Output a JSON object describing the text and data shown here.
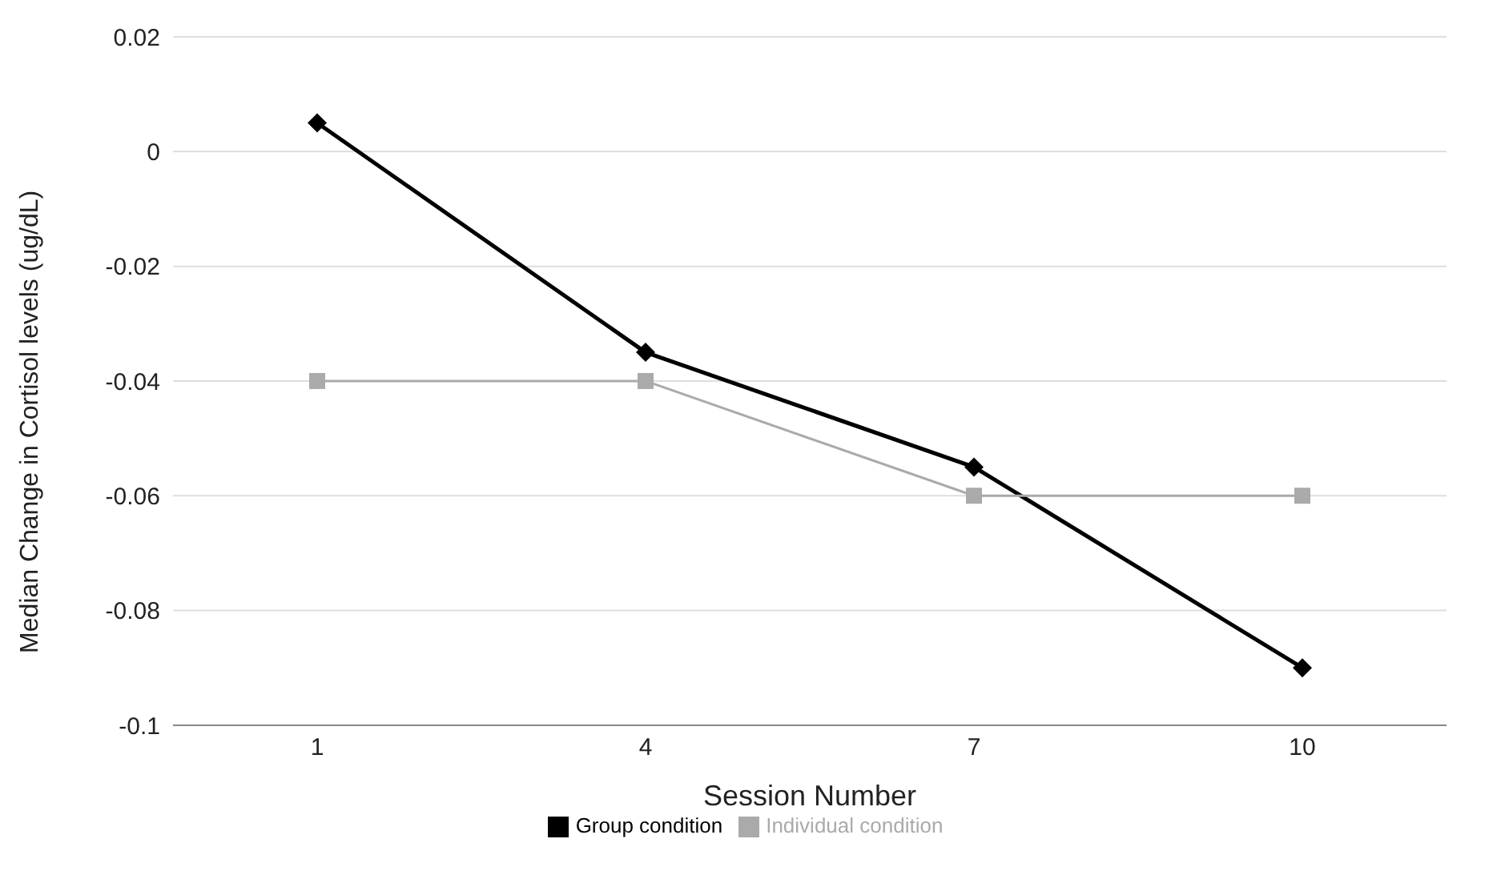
{
  "chart_data": {
    "type": "line",
    "xlabel": "Session Number",
    "ylabel": "Median Change in Cortisol levels (ug/dL)",
    "categories": [
      "1",
      "4",
      "7",
      "10"
    ],
    "series": [
      {
        "name": "Group condition",
        "color": "#000000",
        "marker": "diamond",
        "values": [
          0.005,
          -0.035,
          -0.055,
          -0.09
        ]
      },
      {
        "name": "Individual condition",
        "color": "#aaaaaa",
        "marker": "square",
        "values": [
          -0.04,
          -0.04,
          -0.06,
          -0.06
        ]
      }
    ],
    "ylim": [
      -0.1,
      0.02
    ],
    "yticks": [
      -0.1,
      -0.08,
      -0.06,
      -0.04,
      -0.02,
      0,
      0.02
    ],
    "grid": "y",
    "legend": "bottom"
  }
}
